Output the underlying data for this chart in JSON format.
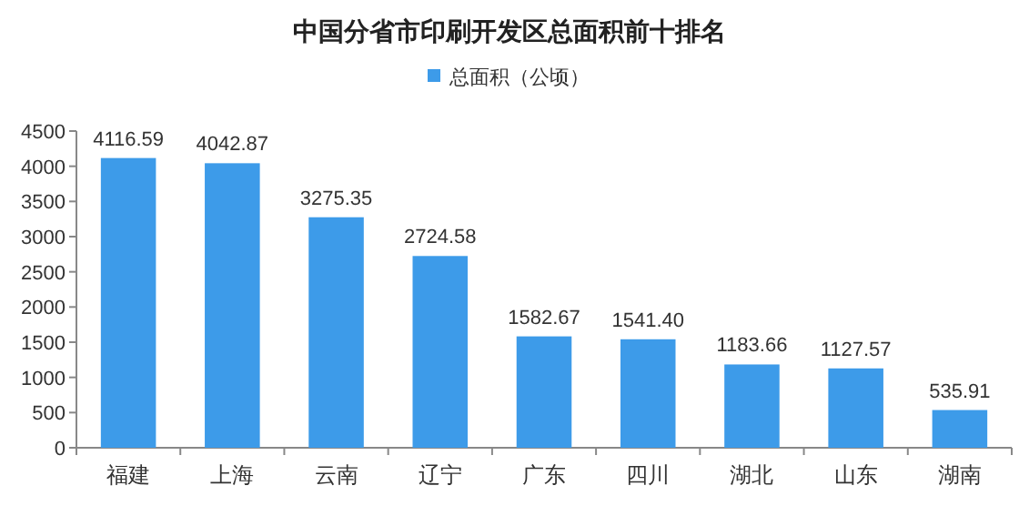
{
  "chart_data": {
    "type": "bar",
    "title": "中国分省市印刷开发区总面积前十排名",
    "categories": [
      "福建",
      "上海",
      "云南",
      "辽宁",
      "广东",
      "四川",
      "湖北",
      "山东",
      "湖南"
    ],
    "series": [
      {
        "name": "总面积（公顷）",
        "color": "#3d9be9",
        "values": [
          4116.59,
          4042.87,
          3275.35,
          2724.58,
          1582.67,
          1541.4,
          1183.66,
          1127.57,
          535.91
        ],
        "value_labels": [
          "4116.59",
          "4042.87",
          "3275.35",
          "2724.58",
          "1582.67",
          "1541.40",
          "1183.66",
          "1127.57",
          "535.91"
        ]
      }
    ],
    "ylim": [
      0,
      4500
    ],
    "yticks": [
      0,
      500,
      1000,
      1500,
      2000,
      2500,
      3000,
      3500,
      4000,
      4500
    ],
    "grid": false,
    "legend": "top"
  }
}
